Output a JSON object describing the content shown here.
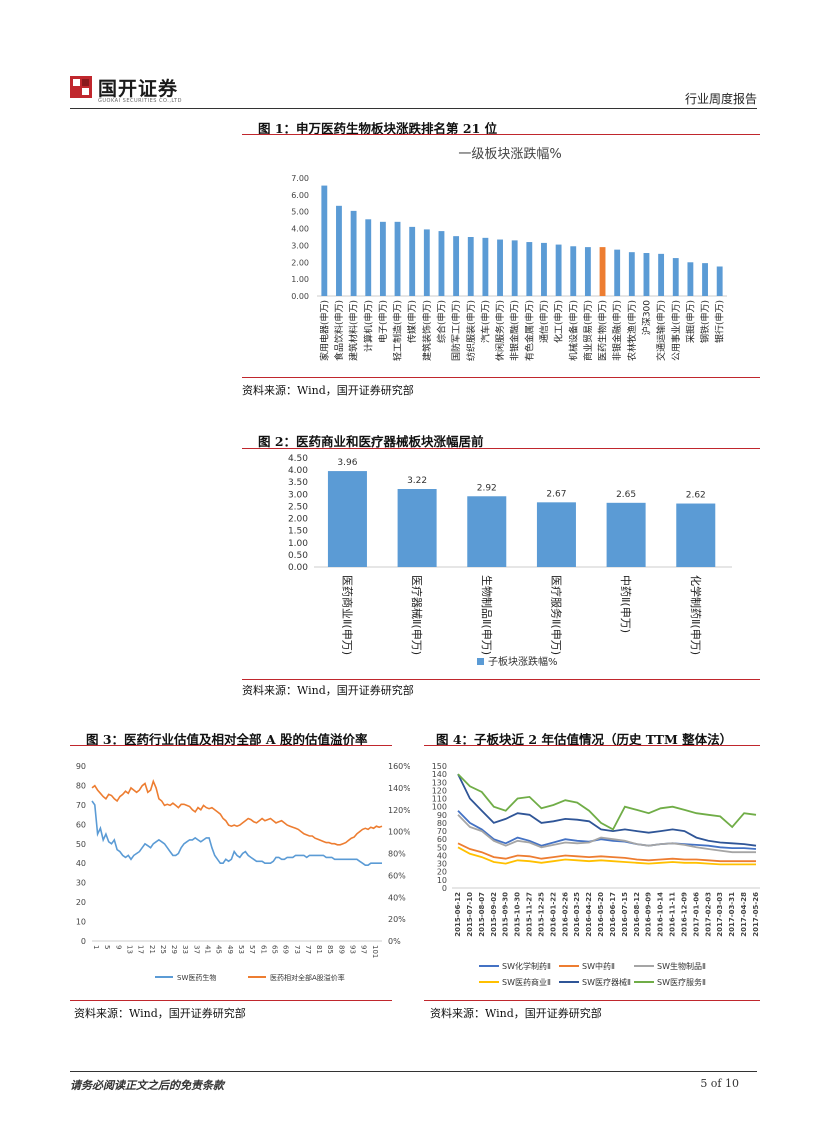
{
  "header": {
    "company_name": "国开证券",
    "company_sub": "GUOKAI SECURITIES CO.,LTD",
    "report_type": "行业周度报告"
  },
  "figure1": {
    "label": "图 1：申万医药生物板块涨跌排名第 21 位",
    "source": "资料来源：Wind，国开证券研究部",
    "chart_data": {
      "type": "bar",
      "title": "一级板块涨跌幅%",
      "categories": [
        "家用电器(申万)",
        "食品饮料(申万)",
        "建筑材料(申万)",
        "计算机(申万)",
        "电子(申万)",
        "轻工制造(申万)",
        "传媒(申万)",
        "建筑装饰(申万)",
        "综合(申万)",
        "国防军工(申万)",
        "纺织服装(申万)",
        "汽车(申万)",
        "休闲服务(申万)",
        "非银金融(申万)",
        "有色金属(申万)",
        "通信(申万)",
        "化工(申万)",
        "机械设备(申万)",
        "商业贸易(申万)",
        "医药生物(申万)",
        "非银金融(申万)",
        "农林牧渔(申万)",
        "沪深300",
        "交通运输(申万)",
        "公用事业(申万)",
        "采掘(申万)",
        "钢铁(申万)",
        "银行(申万)"
      ],
      "values": [
        6.55,
        5.35,
        5.05,
        4.55,
        4.4,
        4.4,
        4.1,
        3.95,
        3.85,
        3.55,
        3.5,
        3.45,
        3.35,
        3.3,
        3.2,
        3.15,
        3.05,
        2.95,
        2.9,
        2.9,
        2.75,
        2.6,
        2.55,
        2.5,
        2.25,
        2.0,
        1.95,
        1.75
      ],
      "highlight_index": 19,
      "ylim": [
        0,
        7
      ],
      "yticks": [
        "0.00",
        "1.00",
        "2.00",
        "3.00",
        "4.00",
        "5.00",
        "6.00",
        "7.00"
      ],
      "colors": {
        "bar": "#5b9bd5",
        "highlight": "#ed7d31"
      }
    }
  },
  "figure2": {
    "label": "图 2：医药商业和医疗器械板块涨幅居前",
    "source": "资料来源：Wind，国开证券研究部",
    "chart_data": {
      "type": "bar",
      "categories": [
        "医药商业Ⅱ(申万)",
        "医疗器械Ⅱ(申万)",
        "生物制品Ⅱ(申万)",
        "医疗服务Ⅱ(申万)",
        "中药Ⅱ(申万)",
        "化学制药Ⅱ(申万)"
      ],
      "values": [
        3.96,
        3.22,
        2.92,
        2.67,
        2.65,
        2.62
      ],
      "value_labels": [
        "3.96",
        "3.22",
        "2.92",
        "2.67",
        "2.65",
        "2.62"
      ],
      "ylim": [
        0,
        4.5
      ],
      "yticks": [
        "0.00",
        "0.50",
        "1.00",
        "1.50",
        "2.00",
        "2.50",
        "3.00",
        "3.50",
        "4.00",
        "4.50"
      ],
      "legend": "子板块涨跌幅%",
      "colors": {
        "bar": "#5b9bd5"
      }
    }
  },
  "figure3": {
    "label": "图 3：医药行业估值及相对全部 A 股的估值溢价率",
    "source": "资料来源：Wind，国开证券研究部",
    "chart_data": {
      "type": "line",
      "ylim": [
        0,
        90
      ],
      "y2lim": [
        0,
        1.6
      ],
      "yticks": [
        "0",
        "10",
        "20",
        "30",
        "40",
        "50",
        "60",
        "70",
        "80",
        "90"
      ],
      "y2ticks": [
        "0%",
        "20%",
        "40%",
        "60%",
        "80%",
        "100%",
        "120%",
        "140%",
        "160%"
      ],
      "xticks": [
        "1",
        "5",
        "9",
        "13",
        "17",
        "21",
        "25",
        "29",
        "33",
        "37",
        "41",
        "45",
        "49",
        "53",
        "57",
        "61",
        "65",
        "69",
        "73",
        "77",
        "81",
        "85",
        "89",
        "93",
        "97",
        "101"
      ],
      "series": [
        {
          "name": "SW医药生物",
          "axis": "left",
          "color": "#5b9bd5",
          "values": [
            72,
            70,
            55,
            58,
            52,
            55,
            51,
            50,
            52,
            47,
            46,
            44,
            43,
            44,
            42,
            44,
            45,
            46,
            48,
            50,
            49,
            48,
            50,
            51,
            52,
            51,
            50,
            48,
            46,
            44,
            44,
            45,
            48,
            50,
            51,
            52,
            52,
            53,
            52,
            51,
            52,
            53,
            53,
            48,
            44,
            42,
            40,
            40,
            42,
            41,
            42,
            46,
            44,
            43,
            45,
            46,
            44,
            43,
            42,
            41,
            41,
            41,
            40,
            40,
            40,
            41,
            43,
            43,
            42,
            42,
            43,
            43,
            43,
            44,
            44,
            44,
            44,
            43,
            44,
            44,
            44,
            44,
            44,
            44,
            43,
            43,
            43,
            42,
            42,
            42,
            42,
            42,
            42,
            42,
            42,
            42,
            41,
            40,
            39,
            39,
            40,
            40,
            40,
            40,
            40
          ]
        },
        {
          "name": "医药相对全部A股溢价率",
          "axis": "right",
          "color": "#ed7d31",
          "values": [
            1.4,
            1.42,
            1.38,
            1.35,
            1.32,
            1.3,
            1.34,
            1.33,
            1.3,
            1.28,
            1.32,
            1.34,
            1.37,
            1.35,
            1.4,
            1.38,
            1.36,
            1.38,
            1.42,
            1.44,
            1.36,
            1.38,
            1.46,
            1.4,
            1.3,
            1.28,
            1.24,
            1.25,
            1.24,
            1.26,
            1.24,
            1.22,
            1.25,
            1.25,
            1.24,
            1.23,
            1.2,
            1.18,
            1.22,
            1.2,
            1.24,
            1.22,
            1.21,
            1.22,
            1.2,
            1.18,
            1.16,
            1.12,
            1.1,
            1.06,
            1.05,
            1.06,
            1.05,
            1.06,
            1.08,
            1.1,
            1.12,
            1.11,
            1.09,
            1.08,
            1.1,
            1.12,
            1.1,
            1.11,
            1.12,
            1.1,
            1.08,
            1.09,
            1.1,
            1.08,
            1.06,
            1.05,
            1.04,
            1.03,
            1.02,
            1.0,
            0.98,
            0.97,
            0.96,
            0.96,
            0.94,
            0.93,
            0.92,
            0.91,
            0.9,
            0.9,
            0.89,
            0.89,
            0.88,
            0.88,
            0.89,
            0.9,
            0.92,
            0.94,
            0.95,
            0.98,
            1.0,
            1.02,
            1.03,
            1.02,
            1.04,
            1.03,
            1.05,
            1.04,
            1.05
          ]
        }
      ]
    }
  },
  "figure4": {
    "label": "图 4：子板块近 2 年估值情况（历史 TTM 整体法）",
    "source": "资料来源：Wind，国开证券研究部",
    "chart_data": {
      "type": "line",
      "ylim": [
        0,
        150
      ],
      "yticks": [
        "0",
        "10",
        "20",
        "30",
        "40",
        "50",
        "60",
        "70",
        "80",
        "90",
        "100",
        "110",
        "120",
        "130",
        "140",
        "150"
      ],
      "xticks": [
        "2015-06-12",
        "2015-07-10",
        "2015-08-07",
        "2015-09-02",
        "2015-09-30",
        "2015-10-30",
        "2015-11-27",
        "2015-12-25",
        "2016-01-22",
        "2016-02-26",
        "2016-03-25",
        "2016-04-22",
        "2016-05-20",
        "2016-06-17",
        "2016-07-15",
        "2016-08-12",
        "2016-09-09",
        "2016-10-14",
        "2016-11-11",
        "2016-12-09",
        "2017-01-06",
        "2017-02-03",
        "2017-03-03",
        "2017-03-31",
        "2017-04-28",
        "2017-05-26"
      ],
      "series": [
        {
          "name": "SW化学制药Ⅱ",
          "color": "#4472c4",
          "values": [
            95,
            80,
            72,
            60,
            55,
            62,
            58,
            52,
            56,
            60,
            58,
            57,
            60,
            58,
            57,
            54,
            52,
            54,
            55,
            54,
            53,
            52,
            50,
            49,
            49,
            48
          ]
        },
        {
          "name": "SW中药Ⅱ",
          "color": "#ed7d31",
          "values": [
            55,
            48,
            44,
            38,
            36,
            40,
            39,
            36,
            38,
            40,
            39,
            38,
            39,
            38,
            37,
            35,
            34,
            35,
            36,
            35,
            35,
            34,
            33,
            33,
            33,
            33
          ]
        },
        {
          "name": "SW生物制品Ⅱ",
          "color": "#a5a5a5",
          "values": [
            90,
            75,
            70,
            58,
            52,
            58,
            56,
            50,
            53,
            56,
            55,
            56,
            62,
            60,
            58,
            54,
            52,
            54,
            55,
            53,
            50,
            48,
            46,
            44,
            44,
            44
          ]
        },
        {
          "name": "SW医药商业Ⅱ",
          "color": "#ffc000",
          "values": [
            50,
            42,
            38,
            32,
            30,
            34,
            33,
            31,
            33,
            35,
            34,
            33,
            34,
            33,
            32,
            31,
            30,
            31,
            32,
            31,
            31,
            30,
            29,
            29,
            29,
            29
          ]
        },
        {
          "name": "SW医疗器械Ⅱ",
          "color": "#2f5597",
          "values": [
            140,
            110,
            95,
            80,
            85,
            92,
            90,
            80,
            82,
            85,
            84,
            82,
            72,
            70,
            72,
            70,
            68,
            70,
            72,
            70,
            62,
            58,
            56,
            55,
            54,
            52
          ]
        },
        {
          "name": "SW医疗服务Ⅱ",
          "color": "#70ad47",
          "values": [
            140,
            125,
            118,
            100,
            95,
            110,
            112,
            98,
            102,
            108,
            105,
            95,
            80,
            72,
            100,
            96,
            92,
            98,
            100,
            96,
            92,
            90,
            88,
            75,
            92,
            90
          ]
        }
      ]
    }
  },
  "footer": {
    "disclaimer": "请务必阅读正文之后的免责条款",
    "page": "5 of 10"
  }
}
